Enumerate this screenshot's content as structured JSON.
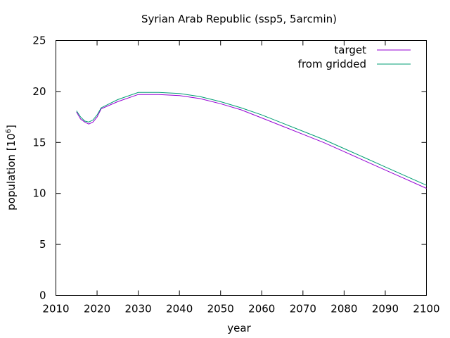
{
  "chart_data": {
    "type": "line",
    "title": "Syrian Arab Republic (ssp5, 5arcmin)",
    "xlabel": "year",
    "ylabel_prefix": "population [10",
    "ylabel_exponent": "6",
    "ylabel_suffix": "]",
    "xlim": [
      2010,
      2100
    ],
    "ylim": [
      0,
      25
    ],
    "xticks": [
      "2010",
      "2020",
      "2030",
      "2040",
      "2050",
      "2060",
      "2070",
      "2080",
      "2090",
      "2100"
    ],
    "yticks": [
      "0",
      "5",
      "10",
      "15",
      "20",
      "25"
    ],
    "legend_position": "top-right",
    "grid": false,
    "series": [
      {
        "name": "target",
        "color": "#9400d3",
        "x": [
          2015,
          2016,
          2017,
          2018,
          2019,
          2020,
          2021,
          2025,
          2030,
          2035,
          2040,
          2045,
          2050,
          2055,
          2060,
          2065,
          2070,
          2075,
          2080,
          2085,
          2090,
          2095,
          2100
        ],
        "y": [
          18.0,
          17.3,
          17.0,
          16.8,
          17.0,
          17.5,
          18.3,
          19.0,
          19.7,
          19.7,
          19.6,
          19.3,
          18.8,
          18.2,
          17.4,
          16.6,
          15.8,
          15.0,
          14.1,
          13.2,
          12.3,
          11.4,
          10.5
        ]
      },
      {
        "name": "from gridded",
        "color": "#009e73",
        "x": [
          2015,
          2016,
          2017,
          2018,
          2019,
          2020,
          2021,
          2025,
          2030,
          2035,
          2040,
          2045,
          2050,
          2055,
          2060,
          2065,
          2070,
          2075,
          2080,
          2085,
          2090,
          2095,
          2100
        ],
        "y": [
          18.1,
          17.5,
          17.1,
          17.0,
          17.2,
          17.7,
          18.4,
          19.2,
          19.9,
          19.9,
          19.8,
          19.5,
          19.0,
          18.4,
          17.7,
          16.9,
          16.1,
          15.3,
          14.4,
          13.5,
          12.6,
          11.7,
          10.8
        ]
      }
    ]
  }
}
